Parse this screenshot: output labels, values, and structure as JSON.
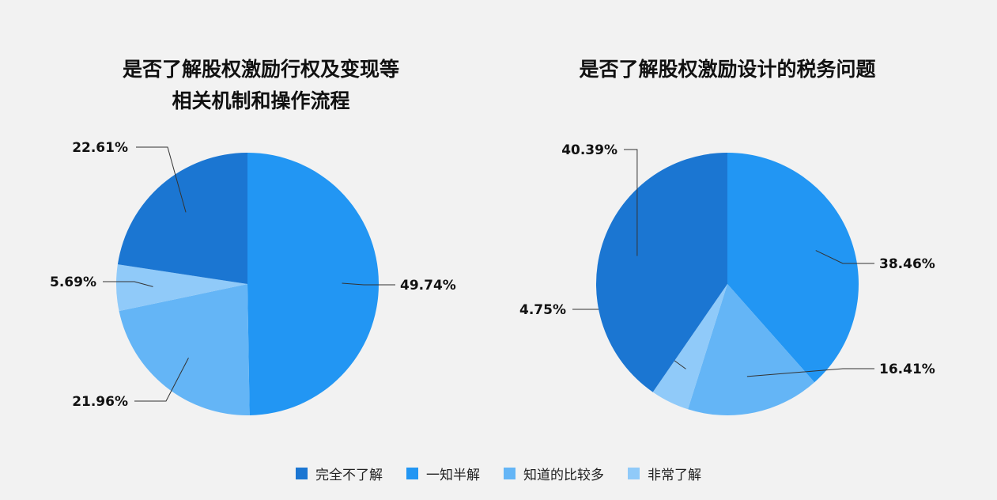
{
  "chart_data": [
    {
      "type": "pie",
      "title_lines": [
        "是否了解股权激励行权及变现等",
        "相关机制和操作流程"
      ],
      "slices": [
        {
          "name": "一知半解",
          "value": 49.74,
          "label": "49.74%"
        },
        {
          "name": "知道的比较多",
          "value": 21.96,
          "label": "21.96%"
        },
        {
          "name": "非常了解",
          "value": 5.69,
          "label": "5.69%"
        },
        {
          "name": "完全不了解",
          "value": 22.61,
          "label": "22.61%"
        }
      ]
    },
    {
      "type": "pie",
      "title_lines": [
        "是否了解股权激励设计的税务问题"
      ],
      "slices": [
        {
          "name": "一知半解",
          "value": 38.46,
          "label": "38.46%"
        },
        {
          "name": "知道的比较多",
          "value": 16.41,
          "label": "16.41%"
        },
        {
          "name": "非常了解",
          "value": 4.75,
          "label": "4.75%"
        },
        {
          "name": "完全不了解",
          "value": 40.39,
          "label": "40.39%"
        }
      ]
    }
  ],
  "legend": [
    {
      "label": "完全不了解",
      "color": "#1b76d2"
    },
    {
      "label": "一知半解",
      "color": "#2296f3"
    },
    {
      "label": "知道的比较多",
      "color": "#64b5f6"
    },
    {
      "label": "非常了解",
      "color": "#90caf9"
    }
  ]
}
